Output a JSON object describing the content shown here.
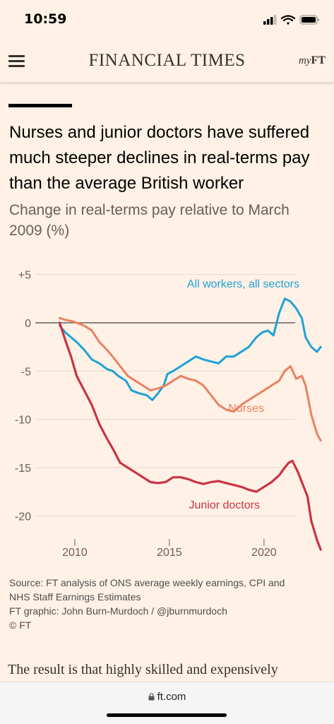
{
  "status": {
    "time": "10:59"
  },
  "masthead": {
    "brand": "FINANCIAL TIMES",
    "myft_prefix": "my",
    "myft_suffix": "FT"
  },
  "headline": "Nurses and junior doctors have suffered much steeper declines in real-terms pay than the average British worker",
  "subtitle": "Change in real-terms pay relative to March 2009 (%)",
  "source_lines": [
    "Source: FT analysis of ONS average weekly earnings, CPI and",
    "NHS Staff Earnings Estimates",
    "FT graphic: John Burn-Murdoch / @jburnmurdoch",
    "© FT"
  ],
  "body_text": "The result is that highly skilled and expensively",
  "url": {
    "lock_icon": "lock-icon",
    "text": "ft.com"
  },
  "colors": {
    "background": "#fff1e5",
    "all_workers": "#1fa2d6",
    "nurses": "#e98160",
    "junior_doctors": "#c93344"
  },
  "chart_data": {
    "type": "line",
    "xlim": [
      2008.1,
      2023.7
    ],
    "ylim": [
      -24,
      6
    ],
    "y_ticks": [
      5,
      0,
      -5,
      -10,
      -15,
      -20
    ],
    "y_tick_labels": [
      "+5",
      "0",
      "-5",
      "-10",
      "-15",
      "-20"
    ],
    "x_ticks": [
      2010,
      2015,
      2020
    ],
    "x_tick_labels": [
      "2010",
      "2015",
      "2020"
    ],
    "grid": "horizontal",
    "series": [
      {
        "name": "All workers, all sectors",
        "x": [
          2009.2,
          2009.5,
          2009.8,
          2010.1,
          2010.5,
          2010.9,
          2011.3,
          2011.7,
          2012.0,
          2012.3,
          2012.7,
          2013.0,
          2013.4,
          2013.8,
          2014.1,
          2014.4,
          2014.7,
          2014.9,
          2015.2,
          2015.6,
          2016.0,
          2016.4,
          2016.8,
          2017.2,
          2017.6,
          2018.0,
          2018.4,
          2018.8,
          2019.2,
          2019.6,
          2019.9,
          2020.2,
          2020.5,
          2020.8,
          2021.1,
          2021.4,
          2021.7,
          2022.0,
          2022.2,
          2022.5,
          2022.8,
          2023.0
        ],
        "y": [
          -0.3,
          -1.0,
          -1.5,
          -2.0,
          -2.8,
          -3.8,
          -4.2,
          -4.8,
          -5.0,
          -5.5,
          -6.0,
          -7.0,
          -7.3,
          -7.5,
          -8.0,
          -7.3,
          -6.5,
          -5.3,
          -5.0,
          -4.5,
          -4.0,
          -3.5,
          -3.8,
          -4.0,
          -4.2,
          -3.5,
          -3.5,
          -3.0,
          -2.5,
          -1.5,
          -1.0,
          -0.8,
          -1.3,
          1.0,
          2.5,
          2.2,
          1.5,
          0.5,
          -1.5,
          -2.5,
          -3.0,
          -2.5
        ]
      },
      {
        "name": "Nurses",
        "x": [
          2009.2,
          2009.5,
          2009.8,
          2010.1,
          2010.5,
          2010.9,
          2011.3,
          2011.7,
          2012.0,
          2012.4,
          2012.8,
          2013.2,
          2013.6,
          2014.0,
          2014.4,
          2014.8,
          2015.2,
          2015.6,
          2016.0,
          2016.4,
          2016.8,
          2017.2,
          2017.6,
          2018.0,
          2018.4,
          2018.8,
          2019.2,
          2019.6,
          2020.0,
          2020.4,
          2020.8,
          2021.1,
          2021.4,
          2021.7,
          2022.0,
          2022.2,
          2022.5,
          2022.8,
          2023.0
        ],
        "y": [
          0.5,
          0.3,
          0.2,
          0.0,
          -0.3,
          -0.8,
          -2.0,
          -2.8,
          -3.5,
          -4.5,
          -5.5,
          -6.0,
          -6.5,
          -7.0,
          -6.8,
          -6.5,
          -6.0,
          -5.5,
          -5.8,
          -6.0,
          -6.5,
          -7.5,
          -8.5,
          -9.0,
          -9.2,
          -8.5,
          -8.0,
          -7.5,
          -7.0,
          -6.5,
          -6.0,
          -5.0,
          -4.5,
          -5.8,
          -5.5,
          -6.5,
          -9.5,
          -11.5,
          -12.2
        ]
      },
      {
        "name": "Junior doctors",
        "x": [
          2009.2,
          2009.5,
          2009.8,
          2010.1,
          2010.5,
          2010.9,
          2011.3,
          2011.7,
          2012.0,
          2012.4,
          2012.8,
          2013.2,
          2013.6,
          2014.0,
          2014.4,
          2014.8,
          2015.2,
          2015.6,
          2016.0,
          2016.4,
          2016.8,
          2017.2,
          2017.6,
          2018.0,
          2018.4,
          2018.8,
          2019.2,
          2019.6,
          2020.0,
          2020.4,
          2020.8,
          2021.1,
          2021.3,
          2021.5,
          2021.8,
          2022.1,
          2022.3,
          2022.5,
          2022.8,
          2023.0
        ],
        "y": [
          0.0,
          -1.8,
          -3.5,
          -5.5,
          -7.0,
          -8.5,
          -10.5,
          -12.0,
          -13.0,
          -14.5,
          -15.0,
          -15.5,
          -16.0,
          -16.5,
          -16.6,
          -16.5,
          -16.0,
          -16.0,
          -16.2,
          -16.5,
          -16.7,
          -16.5,
          -16.4,
          -16.6,
          -16.8,
          -17.0,
          -17.3,
          -17.5,
          -17.0,
          -16.5,
          -15.8,
          -15.0,
          -14.5,
          -14.3,
          -15.5,
          -17.0,
          -18.0,
          -20.5,
          -22.5,
          -23.5
        ]
      }
    ]
  }
}
